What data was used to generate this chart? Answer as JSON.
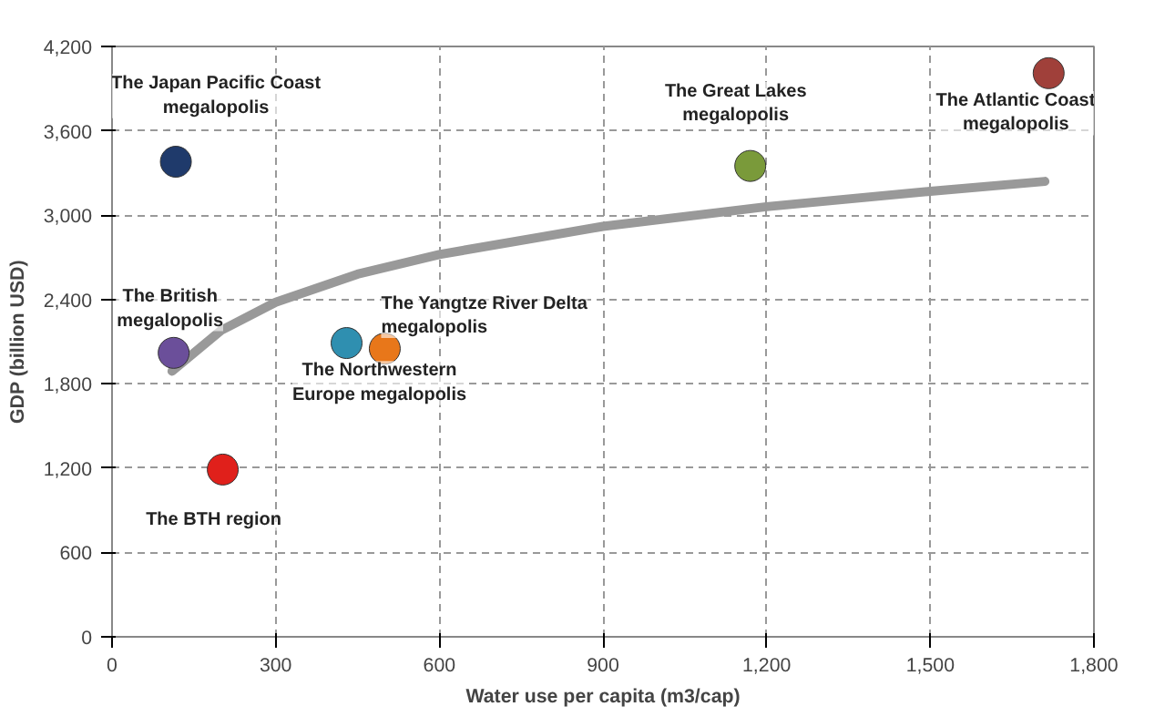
{
  "chart_data": {
    "type": "scatter",
    "xlabel": "Water use per capita (m3/cap)",
    "ylabel": "GDP (billion USD)",
    "xlim": [
      0,
      1800
    ],
    "ylim": [
      0,
      4200
    ],
    "xticks": [
      0,
      300,
      600,
      900,
      {
        "value": 1200,
        "label": "1,200"
      },
      {
        "value": 1500,
        "label": "1,500"
      },
      {
        "value": 1800,
        "label": "1,800"
      }
    ],
    "yticks": [
      0,
      600,
      {
        "value": 1200,
        "label": "1,200"
      },
      {
        "value": 1800,
        "label": "1,800"
      },
      {
        "value": 2400,
        "label": "2,400"
      },
      {
        "value": 3000,
        "label": "3,000"
      },
      {
        "value": 3600,
        "label": "3,600"
      },
      {
        "value": 4200,
        "label": "4,200"
      }
    ],
    "grid": true,
    "marker": "circle",
    "series": [
      {
        "x": [
          117,
          113,
          203,
          430,
          500,
          1170,
          1717
        ],
        "values": [
          3380,
          2020,
          1190,
          2090,
          2050,
          3350,
          4010
        ],
        "colors": [
          "#1f3a6b",
          "#6b4f9a",
          "#e0201b",
          "#2f8fb0",
          "#e8771a",
          "#7a9a3a",
          "#a0403a"
        ]
      },
      {
        "type": "line",
        "color": "#999999",
        "line_style": "solid",
        "marker": "none",
        "x": [
          110,
          200,
          300,
          450,
          600,
          900,
          1200,
          1500,
          1710
        ],
        "values": [
          1890,
          2180,
          2380,
          2580,
          2720,
          2920,
          3060,
          3170,
          3240
        ]
      }
    ],
    "annotations": [
      {
        "text": "The Japan Pacific Coast\nmegalopolis",
        "x": 117,
        "y": 3380
      },
      {
        "text": "The British\nmegalopolis",
        "x": 113,
        "y": 2020
      },
      {
        "text": "The BTH region",
        "x": 203,
        "y": 1190
      },
      {
        "text": "The Northwestern\nEurope megalopolis",
        "x": 430,
        "y": 2090
      },
      {
        "text": "The Yangtze River Delta\nmegalopolis",
        "x": 500,
        "y": 2050
      },
      {
        "text": "The Great Lakes\nmegalopolis",
        "x": 1170,
        "y": 3350
      },
      {
        "text": "The Atlantic Coast\nmegalopolis",
        "x": 1717,
        "y": 4010
      }
    ]
  }
}
